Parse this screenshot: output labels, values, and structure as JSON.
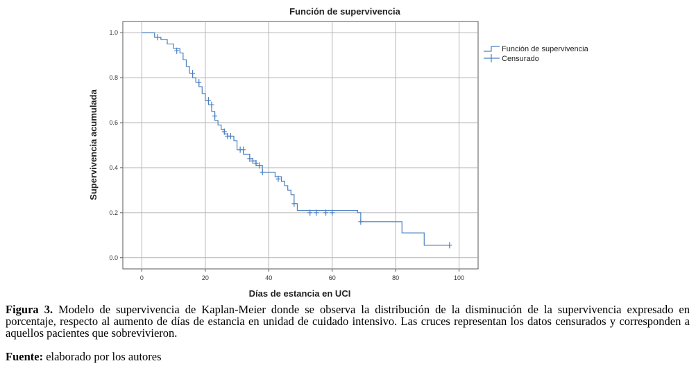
{
  "chart_data": {
    "type": "line",
    "title": "Función de supervivencia",
    "xlabel": "Días de estancia en UCI",
    "ylabel": "Supervivencia acumulada",
    "xlim": [
      -6,
      106
    ],
    "ylim": [
      -0.05,
      1.05
    ],
    "xticks": [
      0,
      20,
      40,
      60,
      80,
      100
    ],
    "xtick_labels": [
      "0",
      "20",
      "40",
      "60",
      "80",
      "100"
    ],
    "yticks": [
      0.0,
      0.2,
      0.4,
      0.6,
      0.8,
      1.0
    ],
    "ytick_labels": [
      "0.0",
      "0.2",
      "0.4",
      "0.6",
      "0.8",
      "1.0"
    ],
    "grid": true,
    "legend_position": "right",
    "color": "#4a7fc1",
    "series": [
      {
        "name": "Función de supervivencia",
        "step_x": [
          0,
          4,
          6,
          8,
          10,
          12,
          13,
          14,
          15,
          16,
          17,
          18,
          19,
          20,
          21,
          22,
          23,
          24,
          25,
          26,
          27,
          29,
          30,
          32,
          34,
          35,
          36,
          38,
          42,
          44,
          45,
          46,
          47,
          48,
          49,
          68,
          69,
          82,
          89,
          97
        ],
        "step_y": [
          1.0,
          0.98,
          0.97,
          0.95,
          0.93,
          0.91,
          0.88,
          0.85,
          0.82,
          0.8,
          0.78,
          0.76,
          0.73,
          0.7,
          0.68,
          0.65,
          0.61,
          0.59,
          0.57,
          0.55,
          0.54,
          0.52,
          0.48,
          0.46,
          0.44,
          0.43,
          0.41,
          0.38,
          0.36,
          0.34,
          0.32,
          0.3,
          0.28,
          0.24,
          0.21,
          0.2,
          0.16,
          0.11,
          0.055,
          0.055
        ]
      },
      {
        "name": "Censurado",
        "censored_x": [
          5,
          11,
          16,
          18,
          21,
          22,
          23,
          26,
          27,
          28,
          31,
          32,
          34,
          35,
          36,
          37,
          38,
          43,
          48,
          53,
          55,
          58,
          60,
          69,
          97
        ],
        "censored_y": [
          0.98,
          0.92,
          0.82,
          0.78,
          0.7,
          0.68,
          0.63,
          0.56,
          0.54,
          0.54,
          0.48,
          0.48,
          0.44,
          0.43,
          0.42,
          0.41,
          0.38,
          0.35,
          0.24,
          0.2,
          0.2,
          0.2,
          0.2,
          0.16,
          0.055
        ]
      }
    ]
  },
  "caption": {
    "figure_label": "Figura 3.",
    "text": "Modelo de supervivencia de Kaplan-Meier donde se observa la distribución de la disminución de la supervivencia expresado en porcentaje, respecto al aumento de días de estancia en unidad de cuidado intensivo. Las cruces representan los datos censurados y corresponden a aquellos pacientes que sobrevivieron.",
    "source_label": "Fuente:",
    "source_text": "elaborado por los autores"
  }
}
